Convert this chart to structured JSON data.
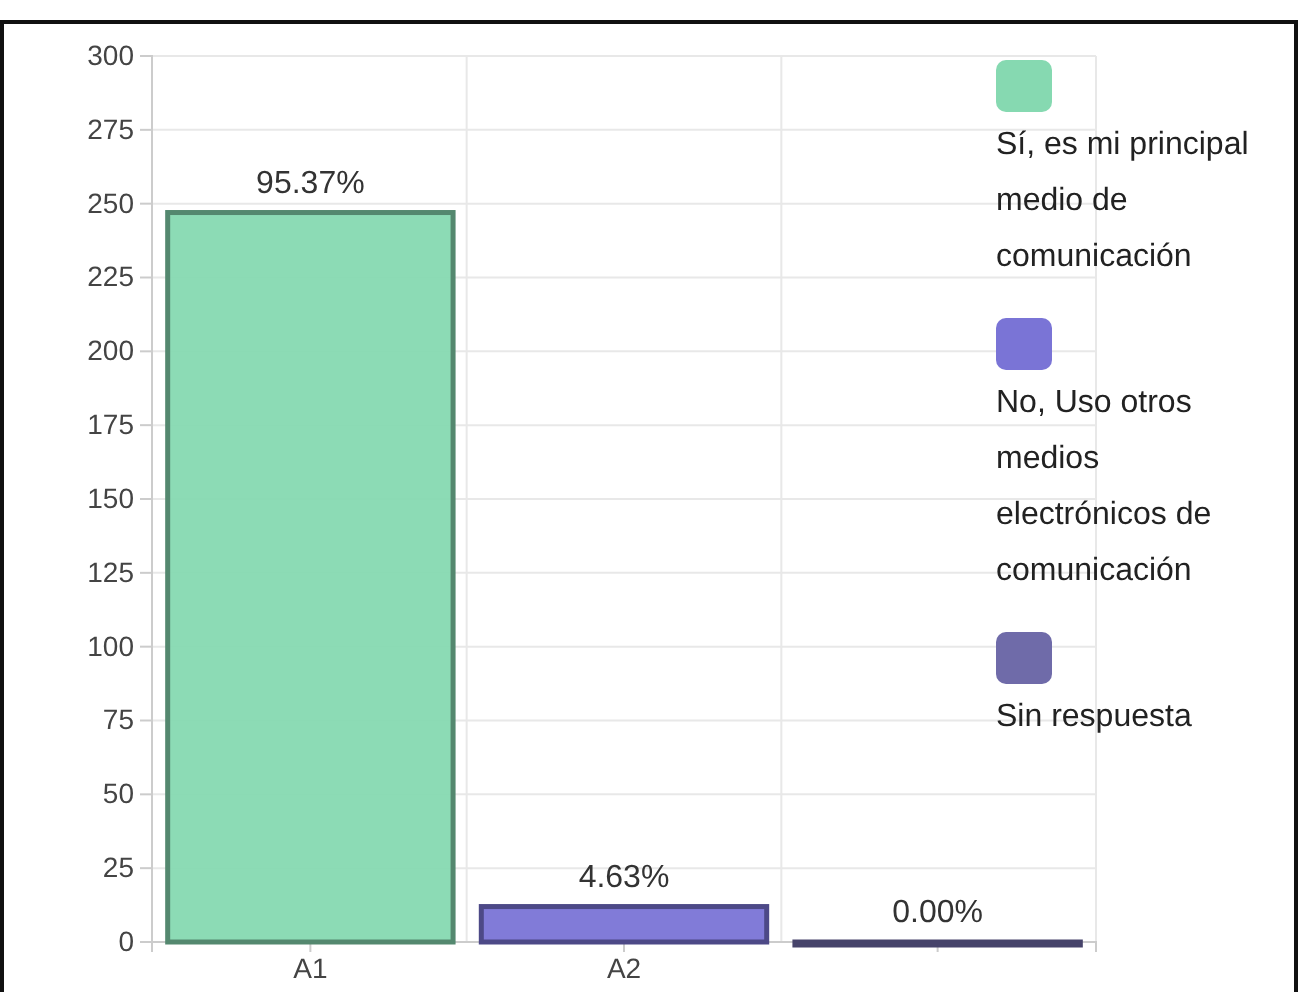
{
  "chart_data": {
    "type": "bar",
    "categories": [
      "A1",
      "A2",
      null
    ],
    "series": [
      {
        "name": "Sí, es mi principal medio de comunicación",
        "color": "#86d9b1",
        "values": [
          247,
          null,
          null
        ]
      },
      {
        "name": "No, Uso otros medios electrónicos de comunicación",
        "color": "#7a74d6",
        "values": [
          null,
          12,
          null
        ]
      },
      {
        "name": "Sin respuesta",
        "color": "#6f6ba9",
        "values": [
          null,
          null,
          0
        ]
      }
    ],
    "annotations": [
      {
        "text": "95.37%",
        "x": "A1",
        "y": 247
      },
      {
        "text": "4.63%",
        "x": "A2",
        "y": 12
      },
      {
        "text": "0.00%",
        "y": 0
      }
    ],
    "ylim": [
      0,
      300
    ],
    "yticks": [
      0,
      25,
      50,
      75,
      100,
      125,
      150,
      175,
      200,
      225,
      250,
      275,
      300
    ],
    "grid": true,
    "legend": "right"
  }
}
